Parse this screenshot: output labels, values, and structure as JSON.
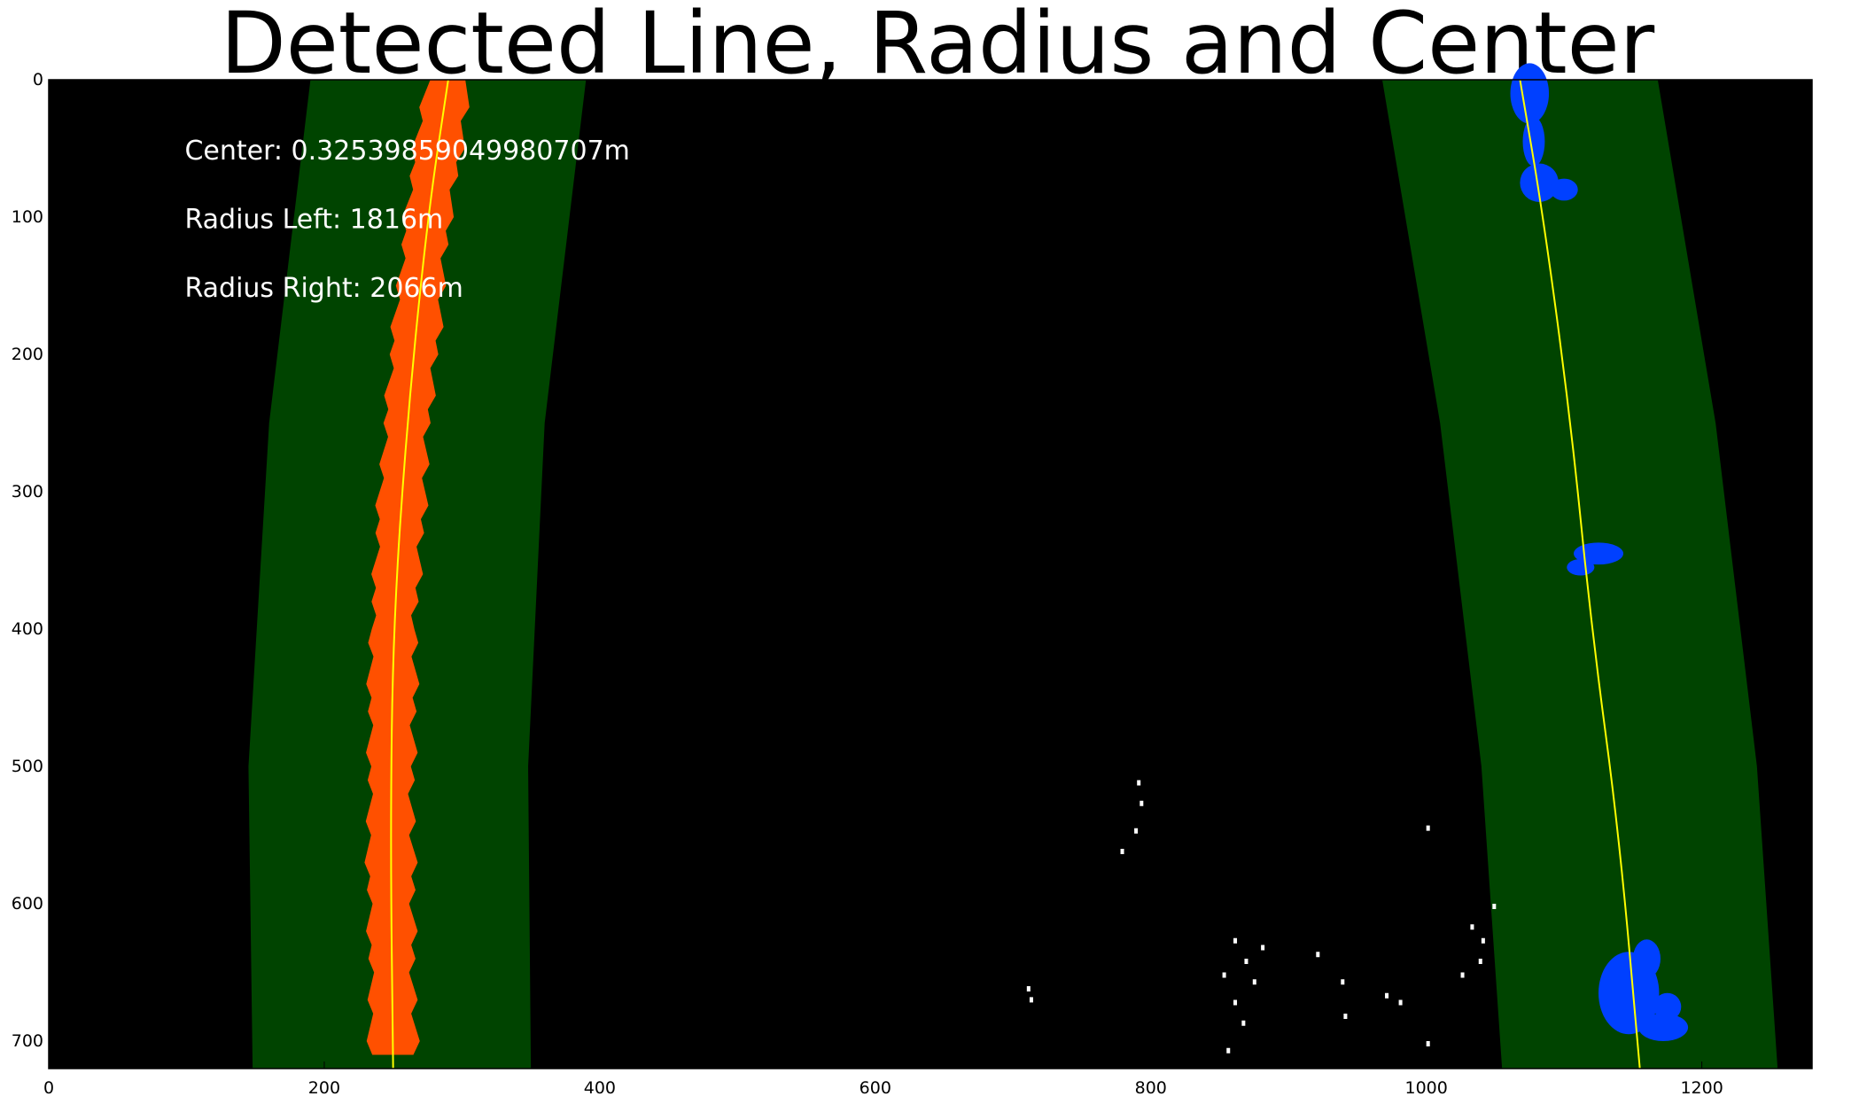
{
  "chart_data": {
    "type": "image",
    "title": "Detected Line, Radius and Center",
    "xlim": [
      0,
      1280
    ],
    "ylim": [
      720,
      0
    ],
    "x_ticks": [
      0,
      200,
      400,
      600,
      800,
      1000,
      1200
    ],
    "y_ticks": [
      0,
      100,
      200,
      300,
      400,
      500,
      600,
      700
    ],
    "annotations": [
      {
        "text": "Center: 0.32539859049980707m",
        "x": 100,
        "y": 45
      },
      {
        "text": "Radius Left: 1816m",
        "x": 100,
        "y": 95
      },
      {
        "text": "Radius Right: 2066m",
        "x": 100,
        "y": 145
      }
    ],
    "colors": {
      "background": "#000000",
      "lane_window": "#004400",
      "left_lane_pixels": "#ff5000",
      "right_lane_pixels": "#0040ff",
      "fit_line": "#ffff00",
      "noise": "#ffffff"
    },
    "left_fit_line": {
      "points": [
        [
          290,
          0
        ],
        [
          275,
          100
        ],
        [
          260,
          250
        ],
        [
          250,
          400
        ],
        [
          248,
          550
        ],
        [
          250,
          720
        ]
      ]
    },
    "right_fit_line": {
      "points": [
        [
          1068,
          0
        ],
        [
          1085,
          100
        ],
        [
          1105,
          250
        ],
        [
          1120,
          400
        ],
        [
          1140,
          550
        ],
        [
          1155,
          720
        ]
      ]
    },
    "left_window": {
      "left_edge": [
        [
          190,
          0
        ],
        [
          160,
          250
        ],
        [
          145,
          500
        ],
        [
          148,
          720
        ]
      ],
      "right_edge": [
        [
          390,
          0
        ],
        [
          360,
          250
        ],
        [
          348,
          500
        ],
        [
          350,
          720
        ]
      ]
    },
    "right_window": {
      "left_edge": [
        [
          968,
          0
        ],
        [
          1010,
          250
        ],
        [
          1040,
          500
        ],
        [
          1055,
          720
        ]
      ],
      "right_edge": [
        [
          1168,
          0
        ],
        [
          1210,
          250
        ],
        [
          1240,
          500
        ],
        [
          1255,
          720
        ]
      ]
    }
  }
}
